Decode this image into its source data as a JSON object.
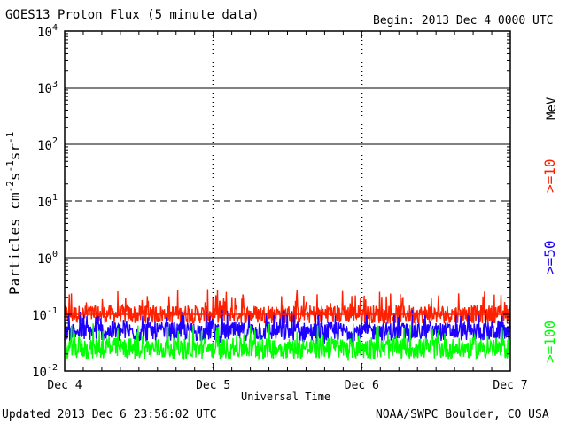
{
  "header": {
    "title": "GOES13 Proton Flux (5 minute data)",
    "begin": "Begin: 2013 Dec 4 0000 UTC"
  },
  "footer": {
    "updated": "Updated 2013 Dec  6 23:56:02 UTC",
    "credit": "NOAA/SWPC Boulder, CO USA"
  },
  "colors": {
    "ge10": "#ff2000",
    "ge50": "#1e00ff",
    "ge100": "#00ff00",
    "axis": "#000000",
    "background": "#ffffff"
  },
  "chart_data": {
    "type": "line",
    "title": "GOES13 Proton Flux (5 minute data)",
    "xlabel": "Universal Time",
    "ylabel": "Particles cm-2s-1sr-1",
    "y_scale": "log",
    "ylim": [
      0.01,
      10000
    ],
    "y_ticks": [
      {
        "value": 0.01,
        "base": "10",
        "exp": "-2"
      },
      {
        "value": 0.1,
        "base": "10",
        "exp": "-1"
      },
      {
        "value": 1,
        "base": "10",
        "exp": "0"
      },
      {
        "value": 10,
        "base": "10",
        "exp": "1"
      },
      {
        "value": 100,
        "base": "10",
        "exp": "2"
      },
      {
        "value": 1000,
        "base": "10",
        "exp": "3"
      },
      {
        "value": 10000,
        "base": "10",
        "exp": "4"
      }
    ],
    "xlim": [
      "2013-12-04 00:00",
      "2013-12-07 00:00"
    ],
    "x_tick_labels": [
      "Dec 4",
      "Dec 5",
      "Dec 6",
      "Dec 7"
    ],
    "threshold_lines": [
      {
        "value": 10,
        "style": "dashed"
      },
      {
        "value": 0.1,
        "style": "solid",
        "color": "#ff2000"
      }
    ],
    "grid": true,
    "legend_placement": "right",
    "unit_label": "MeV",
    "series": [
      {
        "name": ">=10",
        "color": "#ff2000",
        "baseline": 0.1,
        "range": [
          0.07,
          0.28
        ]
      },
      {
        "name": ">=50",
        "color": "#1e00ff",
        "baseline": 0.05,
        "range": [
          0.03,
          0.12
        ]
      },
      {
        "name": ">=100",
        "color": "#00ff00",
        "baseline": 0.025,
        "range": [
          0.015,
          0.07
        ]
      }
    ]
  }
}
